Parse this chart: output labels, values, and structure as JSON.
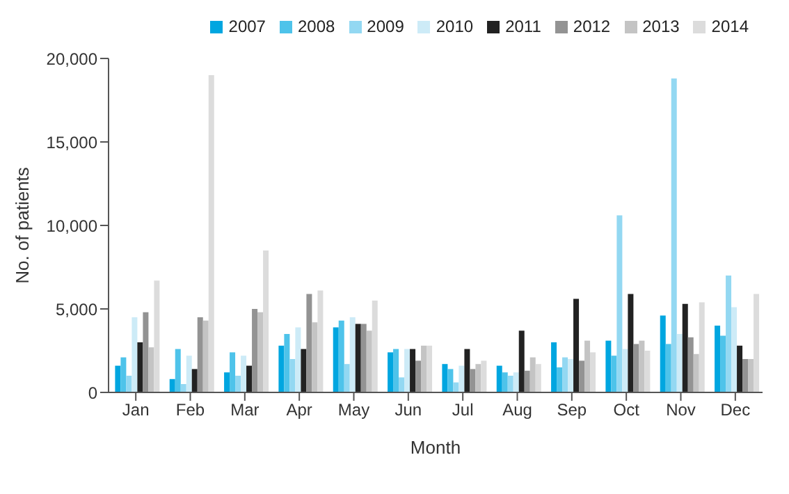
{
  "chart_data": {
    "type": "bar",
    "xlabel": "Month",
    "ylabel": "No. of patients",
    "categories": [
      "Jan",
      "Feb",
      "Mar",
      "Apr",
      "May",
      "Jun",
      "Jul",
      "Aug",
      "Sep",
      "Oct",
      "Nov",
      "Dec"
    ],
    "series": [
      {
        "name": "2007",
        "color": "#00a6e0",
        "values": [
          1600,
          800,
          1200,
          2800,
          3900,
          2400,
          1700,
          1600,
          3000,
          3100,
          4600,
          4000
        ]
      },
      {
        "name": "2008",
        "color": "#4ec3ea",
        "values": [
          2100,
          2600,
          2400,
          3500,
          4300,
          2600,
          1400,
          1200,
          1500,
          2200,
          2900,
          3400
        ]
      },
      {
        "name": "2009",
        "color": "#93d8f2",
        "values": [
          1000,
          500,
          1000,
          2000,
          1700,
          900,
          600,
          1000,
          2100,
          10600,
          18800,
          7000
        ]
      },
      {
        "name": "2010",
        "color": "#cdebf7",
        "values": [
          4500,
          2200,
          2200,
          3900,
          4500,
          2600,
          1600,
          1200,
          2000,
          2600,
          3500,
          5100
        ]
      },
      {
        "name": "2011",
        "color": "#222222",
        "values": [
          3000,
          1400,
          1600,
          2600,
          4100,
          2600,
          2600,
          3700,
          5600,
          5900,
          5300,
          2800
        ]
      },
      {
        "name": "2012",
        "color": "#939393",
        "values": [
          4800,
          4500,
          5000,
          5900,
          4100,
          1900,
          1400,
          1300,
          1900,
          2900,
          3300,
          2000
        ]
      },
      {
        "name": "2013",
        "color": "#c4c4c4",
        "values": [
          2700,
          4300,
          4800,
          4200,
          3700,
          2800,
          1700,
          2100,
          3100,
          3100,
          2300,
          2000
        ]
      },
      {
        "name": "2014",
        "color": "#dcdcdc",
        "values": [
          6700,
          19000,
          8500,
          6100,
          5500,
          2800,
          1900,
          1700,
          2400,
          2500,
          5400,
          5900
        ]
      }
    ],
    "ylim": [
      0,
      20000
    ],
    "yticks": [
      {
        "value": 0,
        "label": "0"
      },
      {
        "value": 5000,
        "label": "5,000"
      },
      {
        "value": 10000,
        "label": "10,000"
      },
      {
        "value": 15000,
        "label": "15,000"
      },
      {
        "value": 20000,
        "label": "20,000"
      }
    ],
    "grid": false,
    "legend": "top right"
  }
}
